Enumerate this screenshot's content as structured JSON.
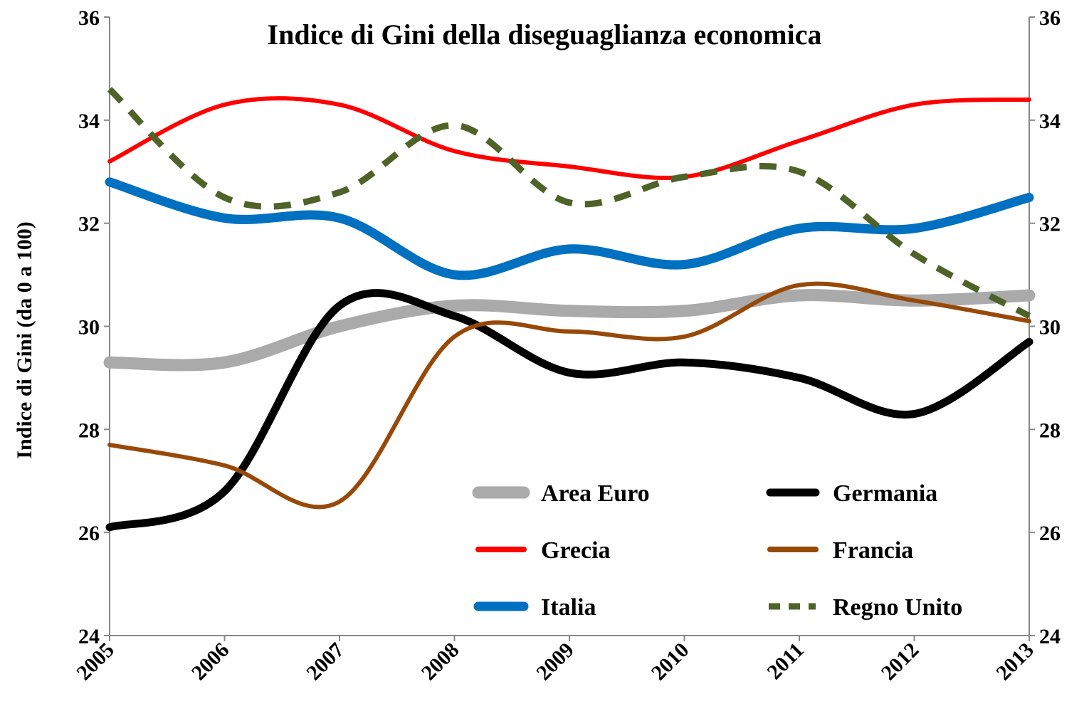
{
  "chart_data": {
    "type": "line",
    "title": "Indice di Gini della diseguaglianza economica",
    "xlabel": "",
    "ylabel": "Indice di Gini (da 0 a 100)",
    "x": [
      "2005",
      "2006",
      "2007",
      "2008",
      "2009",
      "2010",
      "2011",
      "2012",
      "2013"
    ],
    "ylim": [
      24,
      36
    ],
    "yticks": [
      "24",
      "26",
      "28",
      "30",
      "32",
      "34",
      "36"
    ],
    "y2ticks": [
      "24",
      "26",
      "28",
      "30",
      "32",
      "34",
      "36"
    ],
    "grid": false,
    "legend_position": "bottom-right",
    "series": [
      {
        "name": "Area Euro",
        "values": [
          29.3,
          29.3,
          30.0,
          30.4,
          30.3,
          30.3,
          30.6,
          30.5,
          30.6
        ],
        "color": "#aaaaaa",
        "style": "solid",
        "width": 17
      },
      {
        "name": "Germania",
        "values": [
          26.1,
          26.8,
          30.4,
          30.2,
          29.1,
          29.3,
          29.0,
          28.3,
          29.7
        ],
        "color": "#000000",
        "style": "solid",
        "width": 11
      },
      {
        "name": "Grecia",
        "values": [
          33.2,
          34.3,
          34.3,
          33.4,
          33.1,
          32.9,
          33.6,
          34.3,
          34.4
        ],
        "color": "#ff0000",
        "style": "solid",
        "width": 6
      },
      {
        "name": "Francia",
        "values": [
          27.7,
          27.3,
          26.6,
          29.8,
          29.9,
          29.8,
          30.8,
          30.5,
          30.1
        ],
        "color": "#984807",
        "style": "solid",
        "width": 6
      },
      {
        "name": "Italia",
        "values": [
          32.8,
          32.1,
          32.1,
          31.0,
          31.5,
          31.2,
          31.9,
          31.9,
          32.5
        ],
        "color": "#0070c0",
        "style": "solid",
        "width": 13
      },
      {
        "name": "Regno Unito",
        "values": [
          34.6,
          32.5,
          32.6,
          33.9,
          32.4,
          32.9,
          33.0,
          31.4,
          30.2
        ],
        "color": "#4f6228",
        "style": "dashed",
        "width": 9
      }
    ]
  }
}
